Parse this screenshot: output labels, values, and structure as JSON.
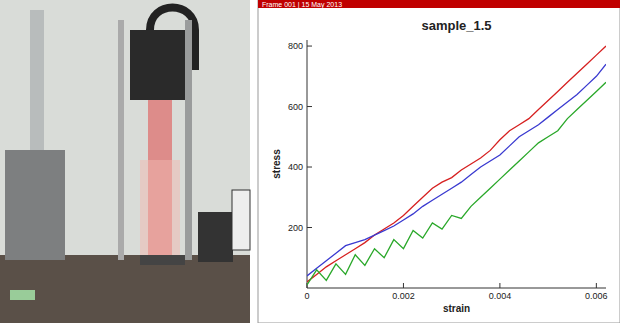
{
  "header": {
    "text": "Frame 001 | 15 May 2013"
  },
  "chart_data": {
    "type": "line",
    "title": "sample_1.5",
    "x_label": "strain",
    "y_label": "stress",
    "x": [
      0,
      0.0002,
      0.0004,
      0.0006,
      0.0008,
      0.001,
      0.0012,
      0.0014,
      0.0016,
      0.0018,
      0.002,
      0.0022,
      0.0024,
      0.0026,
      0.0028,
      0.003,
      0.0032,
      0.0034,
      0.0036,
      0.0038,
      0.004,
      0.0042,
      0.0044,
      0.0046,
      0.0048,
      0.005,
      0.0052,
      0.0054,
      0.0056,
      0.0058,
      0.006,
      0.0062
    ],
    "series": [
      {
        "color": "#d62020",
        "values": [
          20,
          45,
          70,
          90,
          110,
          130,
          150,
          175,
          195,
          215,
          240,
          270,
          300,
          330,
          350,
          365,
          390,
          410,
          430,
          455,
          490,
          520,
          540,
          560,
          590,
          620,
          650,
          680,
          710,
          740,
          770,
          800
        ]
      },
      {
        "color": "#3a3ad0",
        "values": [
          40,
          65,
          90,
          115,
          140,
          150,
          160,
          175,
          190,
          205,
          225,
          245,
          270,
          290,
          310,
          330,
          350,
          375,
          400,
          420,
          440,
          470,
          500,
          520,
          540,
          565,
          590,
          615,
          640,
          670,
          700,
          740
        ]
      },
      {
        "color": "#2aa82a",
        "values": [
          10,
          60,
          25,
          80,
          45,
          110,
          75,
          130,
          100,
          160,
          130,
          190,
          165,
          215,
          195,
          240,
          230,
          270,
          300,
          330,
          360,
          390,
          420,
          450,
          480,
          500,
          520,
          560,
          590,
          620,
          650,
          680
        ]
      }
    ],
    "xlim": [
      0,
      0.0062
    ],
    "ylim": [
      0,
      820
    ],
    "xticks": [
      0,
      0.002,
      0.004,
      0.006
    ],
    "yticks": [
      200,
      400,
      600,
      800
    ]
  }
}
